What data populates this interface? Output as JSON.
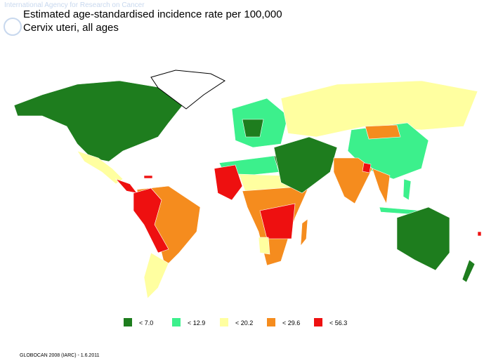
{
  "header": {
    "watermark": "International Agency for Research on Cancer",
    "title": "Estimated age-standardised incidence rate per 100,000",
    "subtitle": "Cervix uteri, all ages"
  },
  "legend": {
    "items": [
      {
        "label": "< 7.0",
        "color": "#1e7d1e"
      },
      {
        "label": "< 12.9",
        "color": "#3cf08c"
      },
      {
        "label": "< 20.2",
        "color": "#ffffa0"
      },
      {
        "label": "< 29.6",
        "color": "#f58c1e"
      },
      {
        "label": "< 56.3",
        "color": "#ee1010"
      }
    ]
  },
  "footer": {
    "source": "GLOBOCAN 2008 (IARC) - 1.6.2011"
  }
}
